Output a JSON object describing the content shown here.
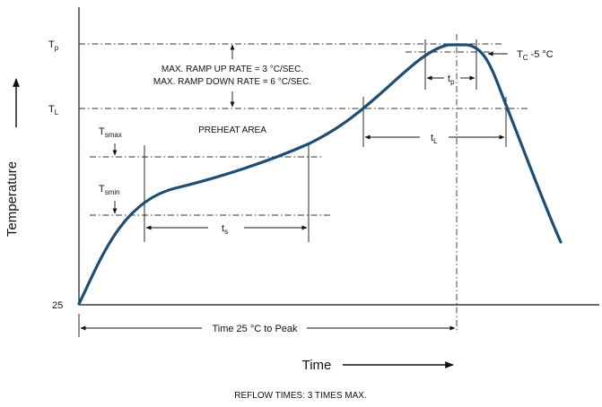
{
  "diagram": {
    "y_axis_label": "Temperature",
    "x_axis_label": "Time",
    "caption": "REFLOW TIMES: 3 TIMES MAX.",
    "levels": {
      "tp": {
        "main": "T",
        "sub": "p"
      },
      "tl": {
        "main": "T",
        "sub": "L"
      },
      "tsmax": {
        "main": "T",
        "sub": "smax"
      },
      "tsmin": {
        "main": "T",
        "sub": "smin"
      },
      "start": "25"
    },
    "annotations": {
      "ramp_up": "MAX. RAMP UP RATE = 3 °C/SEC.",
      "ramp_down": "MAX. RAMP DOWN RATE = 6 °C/SEC.",
      "preheat": "PREHEAT AREA",
      "tc": {
        "main": "T",
        "sub": "C",
        "rest": " -5 °C"
      },
      "t_p": {
        "main": "t",
        "sub": "p"
      },
      "t_l": {
        "main": "t",
        "sub": "L"
      },
      "t_s": {
        "main": "t",
        "sub": "s"
      },
      "time_to_peak": "Time 25 °C to Peak"
    },
    "colors": {
      "curve": "#1f4e74",
      "lines": "#111111"
    }
  }
}
